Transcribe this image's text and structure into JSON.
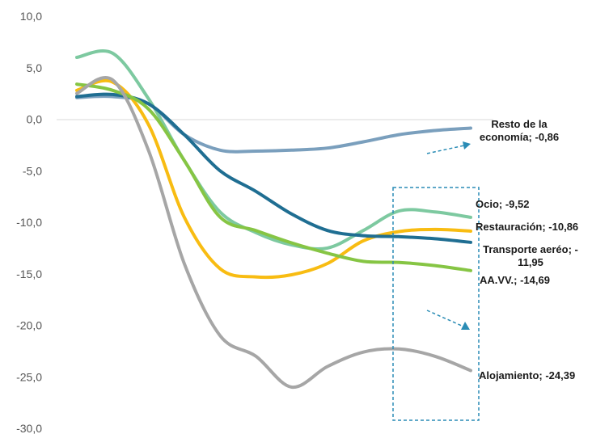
{
  "chart_data": {
    "type": "line",
    "ylim": [
      -30,
      10
    ],
    "yticks": [
      "10,0",
      "5,0",
      "0,0",
      "-5,0",
      "-10,0",
      "-15,0",
      "-20,0",
      "-25,0",
      "-30,0"
    ],
    "grid": false,
    "legend": "none",
    "x": [
      1,
      2,
      3,
      4,
      5,
      6,
      7,
      8,
      9,
      10,
      11,
      12
    ],
    "series": [
      {
        "name": "Resto de la economía",
        "label": [
          "Resto de la",
          "economía; -0,86"
        ],
        "color": "#7a9fbd",
        "values": [
          2.1,
          2.2,
          1.5,
          -1.5,
          -3.0,
          -3.1,
          -3.0,
          -2.8,
          -2.2,
          -1.5,
          -1.1,
          -0.86
        ]
      },
      {
        "name": "Ocio",
        "label": [
          "Ocio; -9,52"
        ],
        "color": "#7dc9a0",
        "values": [
          6.0,
          6.4,
          2.0,
          -4.0,
          -9.0,
          -11.0,
          -12.2,
          -12.5,
          -10.8,
          -8.9,
          -9.0,
          -9.52
        ]
      },
      {
        "name": "Restauración",
        "label": [
          "Restauración; -10,86"
        ],
        "color": "#f8bc12",
        "values": [
          2.8,
          3.6,
          -0.5,
          -9.5,
          -14.5,
          -15.3,
          -15.1,
          -14.0,
          -11.8,
          -10.9,
          -10.7,
          -10.86
        ]
      },
      {
        "name": "Transporte aeréo",
        "label": [
          "Transporte aeréo; -",
          "11,95"
        ],
        "color": "#1f6e92",
        "values": [
          2.2,
          2.4,
          1.5,
          -1.5,
          -5.0,
          -7.0,
          -9.2,
          -10.8,
          -11.3,
          -11.4,
          -11.6,
          -11.95
        ]
      },
      {
        "name": "AA.VV.",
        "label": [
          "AA.VV.; -14,69"
        ],
        "color": "#86c544",
        "values": [
          3.4,
          2.8,
          1.0,
          -4.0,
          -9.5,
          -10.8,
          -12.0,
          -13.0,
          -13.8,
          -13.9,
          -14.2,
          -14.69
        ]
      },
      {
        "name": "Alojamiento",
        "label": [
          "Alojamiento; -24,39"
        ],
        "color": "#a6a6a6",
        "values": [
          2.5,
          3.8,
          -3.0,
          -14.0,
          -21.0,
          -23.0,
          -26.0,
          -24.0,
          -22.6,
          -22.3,
          -23.0,
          -24.39
        ]
      }
    ]
  }
}
